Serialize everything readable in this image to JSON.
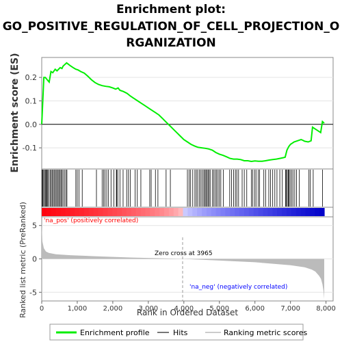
{
  "colors": {
    "curve": "#00ee00",
    "hits": "#000000",
    "pos": "#ff0000",
    "neg": "#0000ff",
    "metric_fill": "#bbbbbb",
    "zero_line": "#9a9a9a"
  },
  "chart_data": {
    "title_lines": [
      "Enrichment plot:",
      "GO_POSITIVE_REGULATION_OF_CELL_PROJECTION_O",
      "RGANIZATION"
    ],
    "es_panel": {
      "type": "line",
      "ylabel": "Enrichment score (ES)",
      "xlim": [
        0,
        8200
      ],
      "ylim": [
        -0.19,
        0.285
      ],
      "yticks": [
        0.2,
        0.1,
        0.0,
        -0.1
      ],
      "ytick_labels": [
        "0.2",
        "0.1",
        "0.0",
        "-0.1"
      ],
      "x": [
        0,
        60,
        100,
        210,
        260,
        310,
        380,
        430,
        520,
        570,
        600,
        700,
        760,
        800,
        900,
        960,
        1020,
        1100,
        1200,
        1300,
        1400,
        1500,
        1600,
        1700,
        1800,
        1900,
        2000,
        2080,
        2150,
        2200,
        2300,
        2400,
        2500,
        2600,
        2700,
        2800,
        2900,
        3000,
        3100,
        3200,
        3300,
        3400,
        3500,
        3600,
        3700,
        3800,
        3900,
        4000,
        4100,
        4200,
        4300,
        4400,
        4500,
        4600,
        4700,
        4800,
        4900,
        5000,
        5100,
        5200,
        5300,
        5400,
        5500,
        5600,
        5700,
        5800,
        5900,
        6000,
        6100,
        6200,
        6300,
        6400,
        6500,
        6600,
        6700,
        6800,
        6850,
        6900,
        6950,
        7000,
        7050,
        7100,
        7200,
        7300,
        7350,
        7400,
        7500,
        7580,
        7620,
        7700,
        7800,
        7850,
        7900,
        7950
      ],
      "values": [
        0.0,
        0.2,
        0.2,
        0.18,
        0.225,
        0.22,
        0.235,
        0.228,
        0.242,
        0.238,
        0.248,
        0.262,
        0.255,
        0.25,
        0.24,
        0.235,
        0.232,
        0.225,
        0.218,
        0.205,
        0.19,
        0.178,
        0.17,
        0.165,
        0.162,
        0.16,
        0.155,
        0.15,
        0.155,
        0.145,
        0.14,
        0.132,
        0.12,
        0.11,
        0.1,
        0.09,
        0.08,
        0.07,
        0.06,
        0.05,
        0.04,
        0.025,
        0.01,
        -0.005,
        -0.02,
        -0.035,
        -0.05,
        -0.065,
        -0.075,
        -0.085,
        -0.092,
        -0.098,
        -0.1,
        -0.102,
        -0.105,
        -0.11,
        -0.12,
        -0.127,
        -0.132,
        -0.138,
        -0.145,
        -0.148,
        -0.148,
        -0.15,
        -0.155,
        -0.155,
        -0.158,
        -0.156,
        -0.157,
        -0.157,
        -0.155,
        -0.152,
        -0.15,
        -0.148,
        -0.145,
        -0.142,
        -0.14,
        -0.11,
        -0.095,
        -0.085,
        -0.08,
        -0.075,
        -0.07,
        -0.065,
        -0.068,
        -0.072,
        -0.075,
        -0.07,
        -0.012,
        -0.02,
        -0.03,
        -0.035,
        0.012,
        0.005
      ]
    },
    "hits_panel": {
      "hits": [
        10,
        30,
        55,
        80,
        110,
        130,
        150,
        170,
        200,
        240,
        270,
        300,
        330,
        360,
        390,
        420,
        450,
        480,
        510,
        540,
        570,
        600,
        640,
        680,
        710,
        960,
        1000,
        1050,
        1140,
        1540,
        1700,
        1740,
        1780,
        1830,
        1880,
        1950,
        2030,
        2100,
        2110,
        2140,
        2200,
        2290,
        2390,
        2440,
        2490,
        2630,
        2690,
        2790,
        3040,
        3080,
        3200,
        3270,
        3500,
        3620,
        4100,
        4150,
        4190,
        4250,
        4310,
        4350,
        4390,
        4440,
        4480,
        4520,
        4560,
        4590,
        4620,
        4650,
        4680,
        4710,
        4740,
        4800,
        4840,
        4880,
        4920,
        4960,
        5000,
        5040,
        5110,
        5290,
        5340,
        5400,
        5450,
        5490,
        5540,
        5640,
        5700,
        5770,
        5900,
        5940,
        5990,
        6030,
        6090,
        6130,
        6250,
        6300,
        6390,
        6440,
        6500,
        6560,
        6620,
        6700,
        6770,
        6860,
        6880,
        6910,
        6940,
        6960,
        6990,
        7030,
        7070,
        7120,
        7170,
        7250,
        7520,
        7560,
        7640,
        7900
      ]
    },
    "rank_bar": {
      "pos_label": "'na_pos' (positively correlated)",
      "neg_label": "'na_neg' (negatively correlated)"
    },
    "metric_panel": {
      "type": "area",
      "ylabel": "Ranked list metric (PreRanked)",
      "xlabel": "Rank in Ordered Dataset",
      "ylim": [
        -6.3,
        6.3
      ],
      "yticks": [
        5,
        0,
        -5
      ],
      "ytick_labels": [
        "5",
        "0",
        "-5"
      ],
      "xticks": [
        0,
        1000,
        2000,
        3000,
        4000,
        5000,
        6000,
        7000,
        8000
      ],
      "xtick_labels": [
        "0",
        "1,000",
        "2,000",
        "3,000",
        "4,000",
        "5,000",
        "6,000",
        "7,000",
        "8,000"
      ],
      "zero_cross_label": "Zero cross at 3965",
      "zero_cross": 3965,
      "x": [
        0,
        20,
        60,
        120,
        200,
        400,
        800,
        1500,
        2500,
        3965,
        5000,
        6000,
        7000,
        7400,
        7600,
        7700,
        7800,
        7860,
        7900,
        7930,
        7950
      ],
      "values": [
        5.2,
        2.6,
        1.6,
        1.1,
        0.9,
        0.7,
        0.55,
        0.4,
        0.2,
        0.0,
        -0.25,
        -0.5,
        -0.95,
        -1.25,
        -1.6,
        -1.9,
        -2.5,
        -3.0,
        -3.8,
        -4.8,
        -6.0
      ]
    },
    "legend": {
      "items": [
        "Enrichment profile",
        "Hits",
        "Ranking metric scores"
      ]
    }
  }
}
